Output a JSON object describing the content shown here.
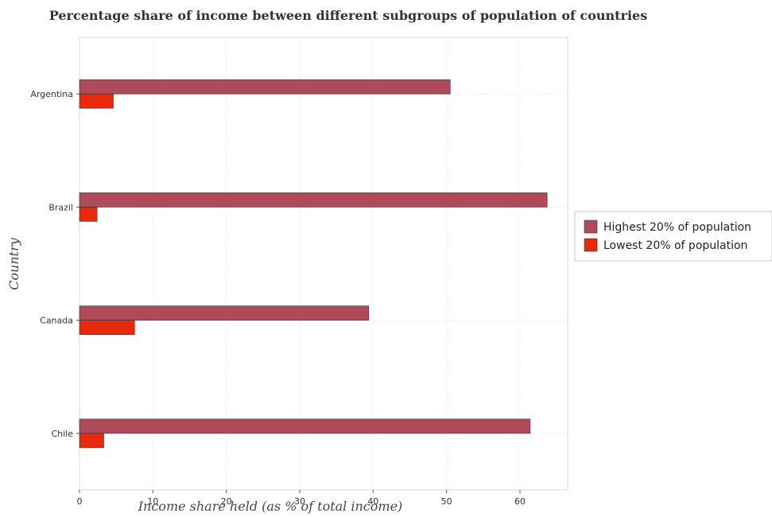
{
  "chart_data": {
    "type": "bar",
    "orientation": "horizontal",
    "title": "Percentage share of income between different subgroups of population of countries",
    "xlabel": "Income share held (as % of total income)",
    "ylabel": "Country",
    "xlim": [
      0,
      66.5
    ],
    "xticks": [
      0,
      10,
      20,
      30,
      40,
      50,
      60
    ],
    "categories": [
      "Argentina",
      "Brazil",
      "Canada",
      "Chile"
    ],
    "series": [
      {
        "name": "Highest 20% of population",
        "color": "#b04a5a",
        "values": [
          50.5,
          63.7,
          39.4,
          61.4
        ]
      },
      {
        "name": "Lowest 20% of population",
        "color": "#e8290b",
        "values": [
          4.6,
          2.4,
          7.5,
          3.3
        ]
      }
    ],
    "grid": true,
    "legend_position": "right"
  }
}
